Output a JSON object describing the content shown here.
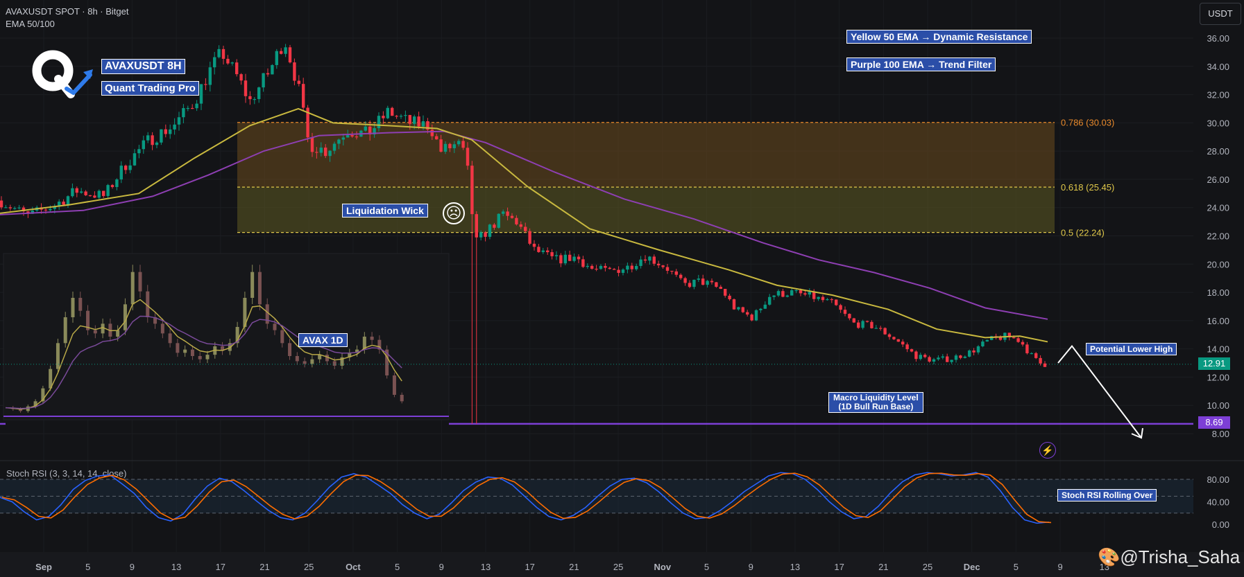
{
  "header": {
    "symbol_line": "AVAXUSDT SPOT · 8h · Bitget",
    "indicator_line": "EMA 50/100",
    "currency_button": "USDT"
  },
  "brand": {
    "title": "AVAXUSDT 8H",
    "subtitle": "Quant Trading Pro",
    "logo_icon": "q-arrow-logo"
  },
  "annotations": {
    "ema50_note": "Yellow 50 EMA → Dynamic Resistance",
    "ema100_note": "Purple 100 EMA → Trend Filter",
    "liquidation_wick": "Liquidation Wick",
    "inset_label": "AVAX 1D",
    "lower_high": "Potential Lower High",
    "macro_level_line1": "Macro Liquidity Level",
    "macro_level_line2": "(1D Bull Run Base)",
    "stoch_note": "Stoch RSI Rolling Over",
    "watermark": "🎨@Trisha_Saha"
  },
  "price_labels": {
    "last": "12.91",
    "macro": "8.69",
    "last_color": "#089981",
    "macro_color": "#7d3fd6"
  },
  "chart_data": {
    "type": "candlestick",
    "y_axis": {
      "ticks": [
        "36.00",
        "34.00",
        "32.00",
        "30.00",
        "28.00",
        "26.00",
        "24.00",
        "22.00",
        "20.00",
        "18.00",
        "16.00",
        "14.00",
        "12.00",
        "10.00",
        "8.00"
      ],
      "min": 6.5,
      "max": 37.5
    },
    "x_axis": {
      "ticks": [
        "Sep",
        "5",
        "9",
        "13",
        "17",
        "21",
        "25",
        "Oct",
        "5",
        "9",
        "13",
        "17",
        "21",
        "25",
        "Nov",
        "5",
        "9",
        "13",
        "17",
        "21",
        "25",
        "Dec",
        "5",
        "9",
        "13"
      ]
    },
    "fib_levels": [
      {
        "label": "0.786 (30.03)",
        "value": 30.03,
        "color": "#e8892b"
      },
      {
        "label": "0.618 (25.45)",
        "value": 25.45,
        "color": "#e0c84a"
      },
      {
        "label": "0.5 (22.24)",
        "value": 22.24,
        "color": "#e0c84a"
      }
    ],
    "macro_level": 8.69,
    "last_price": 12.91,
    "price_path": [
      [
        0,
        24.5
      ],
      [
        40,
        23.4
      ],
      [
        80,
        24.2
      ],
      [
        110,
        25.2
      ],
      [
        150,
        24.8
      ],
      [
        180,
        27.0
      ],
      [
        215,
        28.8
      ],
      [
        250,
        29.8
      ],
      [
        280,
        31.5
      ],
      [
        300,
        33.5
      ],
      [
        320,
        35.0
      ],
      [
        345,
        33.0
      ],
      [
        360,
        31.5
      ],
      [
        390,
        33.8
      ],
      [
        410,
        36.0
      ],
      [
        430,
        32.5
      ],
      [
        445,
        28.5
      ],
      [
        470,
        28.0
      ],
      [
        500,
        29.5
      ],
      [
        530,
        29.2
      ],
      [
        560,
        30.8
      ],
      [
        590,
        30.0
      ],
      [
        620,
        29.8
      ],
      [
        635,
        28.0
      ],
      [
        660,
        28.5
      ],
      [
        672,
        27.5
      ],
      [
        685,
        21.5
      ],
      [
        705,
        22.5
      ],
      [
        725,
        23.5
      ],
      [
        745,
        23.0
      ],
      [
        770,
        21.0
      ],
      [
        800,
        20.3
      ],
      [
        830,
        20.5
      ],
      [
        855,
        19.6
      ],
      [
        880,
        19.5
      ],
      [
        905,
        19.8
      ],
      [
        930,
        20.6
      ],
      [
        960,
        19.8
      ],
      [
        985,
        18.5
      ],
      [
        1010,
        18.8
      ],
      [
        1040,
        18.2
      ],
      [
        1060,
        16.8
      ],
      [
        1085,
        16.2
      ],
      [
        1110,
        17.8
      ],
      [
        1140,
        18.0
      ],
      [
        1170,
        17.7
      ],
      [
        1200,
        17.2
      ],
      [
        1230,
        15.8
      ],
      [
        1260,
        15.6
      ],
      [
        1290,
        14.7
      ],
      [
        1320,
        13.5
      ],
      [
        1345,
        13.2
      ],
      [
        1370,
        13.3
      ],
      [
        1400,
        13.8
      ],
      [
        1425,
        14.6
      ],
      [
        1450,
        14.9
      ],
      [
        1470,
        14.6
      ],
      [
        1490,
        13.3
      ],
      [
        1502,
        12.9
      ],
      [
        1512,
        12.91
      ]
    ],
    "ema50": [
      [
        0,
        23.6
      ],
      [
        100,
        24.2
      ],
      [
        200,
        25.0
      ],
      [
        280,
        27.5
      ],
      [
        360,
        29.8
      ],
      [
        430,
        31.0
      ],
      [
        480,
        30.0
      ],
      [
        560,
        29.8
      ],
      [
        630,
        29.6
      ],
      [
        680,
        28.8
      ],
      [
        760,
        25.5
      ],
      [
        850,
        22.5
      ],
      [
        950,
        21.0
      ],
      [
        1050,
        19.6
      ],
      [
        1120,
        18.5
      ],
      [
        1200,
        17.8
      ],
      [
        1280,
        16.8
      ],
      [
        1350,
        15.4
      ],
      [
        1420,
        14.8
      ],
      [
        1470,
        14.9
      ],
      [
        1510,
        14.5
      ]
    ],
    "ema100": [
      [
        0,
        23.5
      ],
      [
        120,
        23.8
      ],
      [
        220,
        24.8
      ],
      [
        300,
        26.3
      ],
      [
        380,
        28.0
      ],
      [
        460,
        29.1
      ],
      [
        560,
        29.3
      ],
      [
        640,
        29.4
      ],
      [
        700,
        28.6
      ],
      [
        800,
        26.5
      ],
      [
        900,
        24.6
      ],
      [
        1000,
        23.2
      ],
      [
        1100,
        21.5
      ],
      [
        1180,
        20.3
      ],
      [
        1260,
        19.4
      ],
      [
        1340,
        18.3
      ],
      [
        1420,
        16.9
      ],
      [
        1510,
        16.1
      ]
    ],
    "projection": [
      [
        1525,
        13.0
      ],
      [
        1545,
        14.2
      ],
      [
        1645,
        7.7
      ]
    ],
    "stoch_rsi": {
      "label": "Stoch RSI (3, 3, 14, 14, close)",
      "ticks": [
        "80.00",
        "40.00",
        "0.00"
      ],
      "upper": 80,
      "mid": 50,
      "lower": 20,
      "values": [
        48,
        40,
        22,
        8,
        14,
        35,
        62,
        78,
        86,
        88,
        72,
        55,
        30,
        12,
        6,
        18,
        45,
        68,
        82,
        76,
        60,
        42,
        25,
        12,
        8,
        20,
        42,
        66,
        84,
        90,
        84,
        70,
        55,
        35,
        20,
        10,
        18,
        38,
        60,
        75,
        84,
        82,
        70,
        50,
        30,
        14,
        8,
        16,
        30,
        50,
        68,
        80,
        82,
        74,
        58,
        38,
        20,
        10,
        12,
        24,
        40,
        58,
        72,
        86,
        92,
        90,
        80,
        62,
        40,
        22,
        10,
        14,
        32,
        56,
        76,
        88,
        92,
        90,
        86,
        88,
        92,
        84,
        60,
        30,
        8,
        2,
        4
      ]
    },
    "inset": {
      "label": "AVAX 1D",
      "values": [
        7,
        6.8,
        6.5,
        7.2,
        8,
        10,
        13,
        17,
        21,
        24,
        22,
        19,
        18.5,
        20,
        18,
        19,
        23,
        28,
        25,
        21,
        20,
        18.5,
        17,
        15.5,
        16,
        15,
        14.5,
        15.2,
        16.5,
        15.8,
        17,
        19.5,
        24,
        28,
        23,
        20,
        19,
        17,
        15,
        14.2,
        13.8,
        14.5,
        15.2,
        14.2,
        13.5,
        14.8,
        15.5,
        16,
        18,
        17.5,
        16,
        12,
        9,
        8
      ]
    }
  }
}
